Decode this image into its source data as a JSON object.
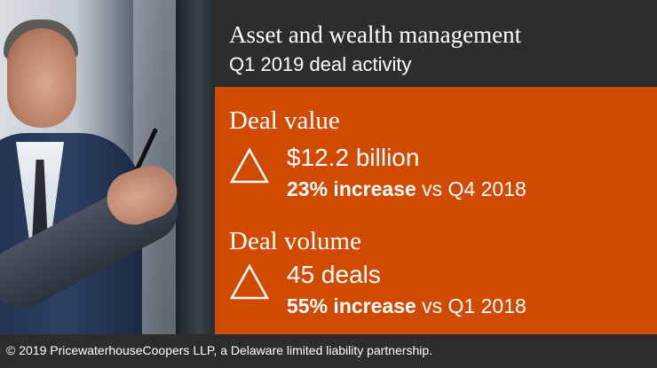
{
  "header": {
    "title": "Asset and wealth management",
    "subtitle": "Q1 2019 deal activity"
  },
  "sections": [
    {
      "label": "Deal value",
      "icon": "triangle-up-icon",
      "metric": "$12.2 billion",
      "change_bold": "23% increase",
      "change_rest": " vs Q4 2018"
    },
    {
      "label": "Deal volume",
      "icon": "triangle-up-icon",
      "metric": "45 deals",
      "change_bold": "55% increase",
      "change_rest": " vs Q1 2018"
    }
  ],
  "footer": {
    "copyright": "© 2019 PricewaterhouseCoopers LLP, a Delaware limited liability partnership."
  },
  "colors": {
    "accent": "#d04a02",
    "dark": "#2d2d2d",
    "text": "#ffffff"
  }
}
